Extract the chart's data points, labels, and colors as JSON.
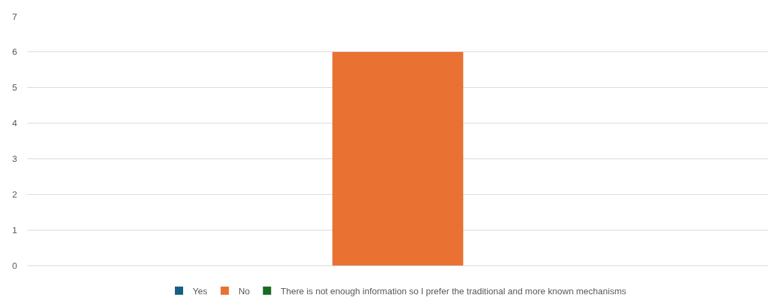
{
  "chart_data": {
    "type": "bar",
    "categories": [
      null
    ],
    "series": [
      {
        "name": "Yes",
        "color": "#156082",
        "values": [
          0
        ]
      },
      {
        "name": "No",
        "color": "#e97132",
        "values": [
          6
        ]
      },
      {
        "name": "There is not enough information so I prefer the traditional and more known mechanisms",
        "color": "#196b24",
        "values": [
          0
        ]
      }
    ],
    "ylim": [
      0,
      7
    ],
    "yticks": [
      0,
      1,
      2,
      3,
      4,
      5,
      6,
      7
    ],
    "grid": "y",
    "legend": "bottom",
    "tick_labels": "y"
  }
}
